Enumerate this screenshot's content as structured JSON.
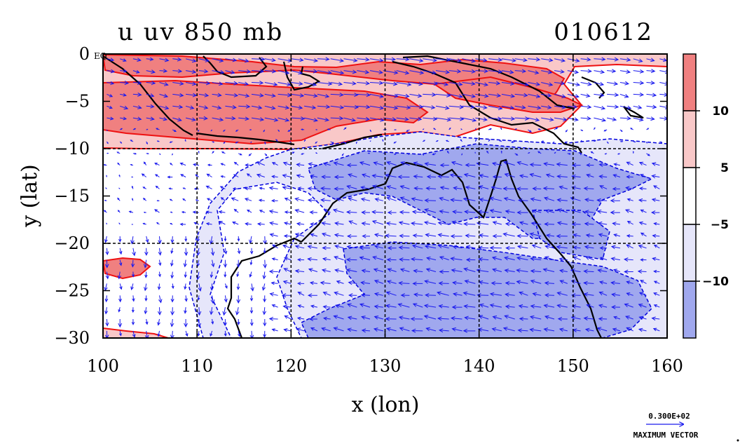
{
  "title": {
    "left": "u uv 850 mb",
    "right": "010612"
  },
  "axes": {
    "xlabel": "x (lon)",
    "ylabel": "y (lat)",
    "xrange": [
      100,
      160
    ],
    "yrange": [
      -30,
      0
    ],
    "xticks": [
      "100",
      "110",
      "120",
      "130",
      "140",
      "150",
      "160"
    ],
    "yticks": [
      "0",
      "−5",
      "−10",
      "−15",
      "−20",
      "−25",
      "−30"
    ],
    "equator_label": "EQ",
    "grid_lon": [
      110,
      120,
      130,
      140,
      150
    ],
    "grid_lat": [
      -10,
      -20
    ]
  },
  "colorbar": {
    "labels": [
      "10",
      "5",
      "−5",
      "−10"
    ],
    "colors": [
      "#f08080",
      "#f9c8c8",
      "#ffffff",
      "#e6e6fa",
      "#a0a8ee"
    ]
  },
  "vector_key": {
    "value": "0.300E+02",
    "label": "MAXIMUM VECTOR"
  },
  "colors": {
    "positive_fill_strong": "#f08080",
    "positive_fill_light": "#f9c8c8",
    "negative_fill_light": "#e6e6fa",
    "negative_fill_strong": "#a0a8ee",
    "positive_contour": "#ee1111",
    "negative_contour": "#0000dd",
    "coastline": "#000000",
    "vectors": "#1a1aee"
  },
  "chart_data": {
    "type": "heatmap",
    "variable": "u",
    "level": "850 mb",
    "date": "010612",
    "legend_placement": "right",
    "grid": true,
    "xlabel": "x (lon)",
    "ylabel": "y (lat)",
    "xlim": [
      100,
      160
    ],
    "ylim": [
      -30,
      0
    ],
    "contour_levels": [
      -10,
      -5,
      5,
      10
    ],
    "max_vector": 30
  }
}
